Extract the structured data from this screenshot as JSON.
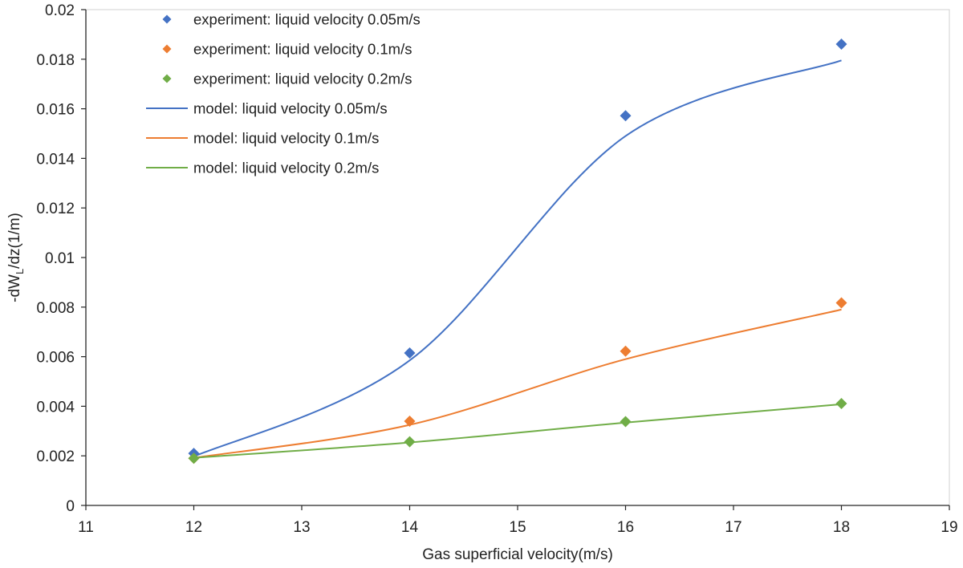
{
  "chart_data": {
    "type": "scatter",
    "title": "",
    "xlabel": "Gas superficial velocity(m/s)",
    "ylabel": {
      "prefix": "-dW",
      "sub": "L",
      "suffix": "/dz(1/m)"
    },
    "xlim": [
      11,
      19
    ],
    "ylim": [
      0,
      0.02
    ],
    "x_ticks": [
      "11",
      "12",
      "13",
      "14",
      "15",
      "16",
      "17",
      "18",
      "19"
    ],
    "y_ticks": [
      "0",
      "0.002",
      "0.004",
      "0.006",
      "0.008",
      "0.01",
      "0.012",
      "0.014",
      "0.016",
      "0.018",
      "0.02"
    ],
    "grid": false,
    "legend_position": "top-left",
    "x": [
      12,
      14,
      16,
      18
    ],
    "series": [
      {
        "name": "experiment: liquid velocity 0.05m/s",
        "kind": "marker",
        "color": "#4472C4",
        "values": [
          0.0021,
          0.00615,
          0.01572,
          0.01861
        ]
      },
      {
        "name": "experiment: liquid velocity 0.1m/s",
        "kind": "marker",
        "color": "#ED7D31",
        "values": [
          0.0019,
          0.0034,
          0.00622,
          0.00817
        ]
      },
      {
        "name": "experiment: liquid velocity 0.2m/s",
        "kind": "marker",
        "color": "#70AD47",
        "values": [
          0.0019,
          0.00257,
          0.00338,
          0.00411
        ]
      },
      {
        "name": "model: liquid velocity 0.05m/s",
        "kind": "line",
        "color": "#4472C4",
        "values": [
          0.00197,
          0.00585,
          0.0149,
          0.01795
        ]
      },
      {
        "name": "model: liquid velocity 0.1m/s",
        "kind": "line",
        "color": "#ED7D31",
        "values": [
          0.00192,
          0.00325,
          0.0059,
          0.0079
        ]
      },
      {
        "name": "model: liquid velocity 0.2m/s",
        "kind": "line",
        "color": "#70AD47",
        "values": [
          0.00192,
          0.00254,
          0.00334,
          0.00408
        ]
      }
    ]
  }
}
